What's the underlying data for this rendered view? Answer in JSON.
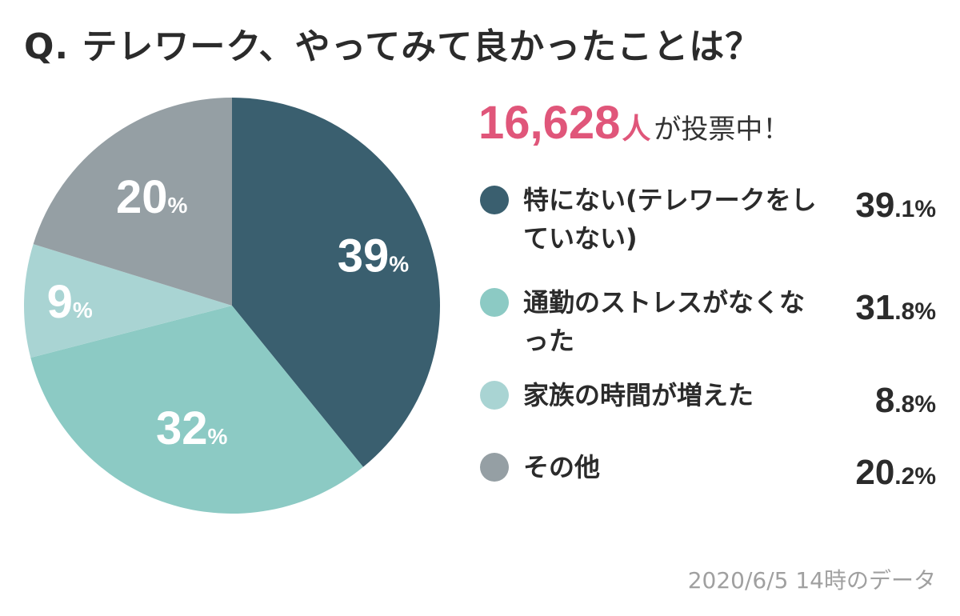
{
  "title": "Q. テレワーク、やってみて良かったことは？",
  "votes": {
    "count": "16,628",
    "unit": "人",
    "suffix": "が投票中！"
  },
  "colors": {
    "series": [
      "#3a5f6f",
      "#8ccac4",
      "#a9d4d3",
      "#959fa4"
    ],
    "vote_accent": "#e0567a",
    "text": "#2b2b2b",
    "note": "#a0a0a0"
  },
  "chart_data": {
    "type": "pie",
    "start": "12 o'clock, clockwise",
    "categories": [
      "特にない(テレワークをしていない)",
      "通勤のストレスがなくなった",
      "家族の時間が増えた",
      "その他"
    ],
    "values": [
      39.1,
      31.8,
      8.8,
      20.2
    ],
    "slice_labels": [
      {
        "num": "39",
        "unit": "%"
      },
      {
        "num": "32",
        "unit": "%"
      },
      {
        "num": "9",
        "unit": "%"
      },
      {
        "num": "20",
        "unit": "%"
      }
    ],
    "legend_placement": "right"
  },
  "legend": [
    {
      "label": "特にない(テレワークをしていない)",
      "value_int": "39",
      "value_dec": ".1%"
    },
    {
      "label": "通勤のストレスがなくなった",
      "value_int": "31",
      "value_dec": ".8%"
    },
    {
      "label": "家族の時間が増えた",
      "value_int": "8",
      "value_dec": ".8%"
    },
    {
      "label": "その他",
      "value_int": "20",
      "value_dec": ".2%"
    }
  ],
  "note": "2020/6/5 14時のデータ"
}
